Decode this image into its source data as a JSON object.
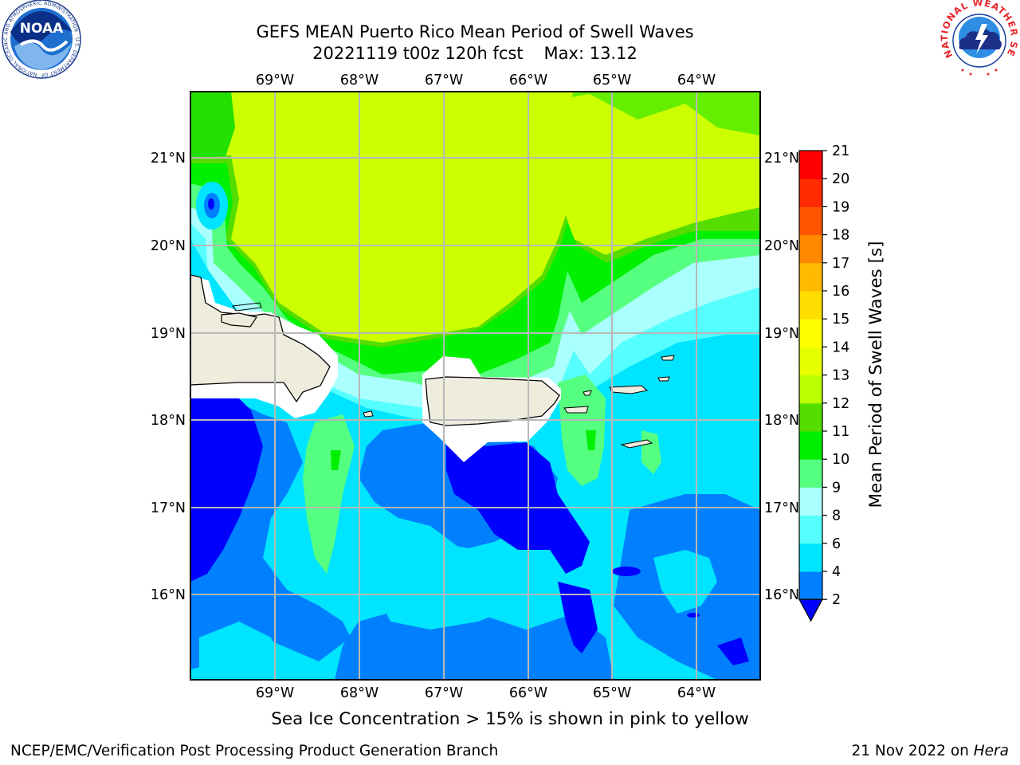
{
  "title": {
    "line1": "GEFS MEAN Puerto Rico Mean Period of Swell Waves",
    "line2": "20221119 t00z 120h fcst",
    "max_label": "Max: 13.12"
  },
  "map": {
    "lon_labels": [
      "69°W",
      "68°W",
      "67°W",
      "66°W",
      "65°W",
      "64°W"
    ],
    "lat_labels": [
      "21°N",
      "20°N",
      "19°N",
      "18°N",
      "17°N",
      "16°N"
    ],
    "land_color": "#eeecdc"
  },
  "colorbar": {
    "label": "Mean Period of Swell Waves [s]",
    "ticks": [
      "2",
      "4",
      "6",
      "8",
      "9",
      "10",
      "11",
      "12",
      "13",
      "14",
      "15",
      "16",
      "17",
      "18",
      "19",
      "20",
      "21"
    ],
    "colors": [
      "#0000ff",
      "#0080ff",
      "#00e5ff",
      "#55ffff",
      "#aaffff",
      "#55ff80",
      "#00ee00",
      "#55dd00",
      "#bbff00",
      "#e6ff00",
      "#ffff00",
      "#ffdd00",
      "#ffbb00",
      "#ff8800",
      "#ff5500",
      "#ff2a00",
      "#ff0000"
    ],
    "extend_color": "#0000ff"
  },
  "logos": {
    "noaa_text": "NOAA",
    "noaa_ring_text": "NATIONAL OCEANIC AND ATMOSPHERIC ADMINISTRATION · U.S. DEPARTMENT OF COMMERCE",
    "nws_ring_text": "NATIONAL WEATHER SERVICE"
  },
  "notes": {
    "sea_ice": "Sea Ice Concentration > 15% is shown in pink to yellow"
  },
  "footer": {
    "left": "NCEP/EMC/Verification Post Processing Product Generation Branch",
    "right_date": "21 Nov 2022 on ",
    "right_host": "Hera"
  }
}
